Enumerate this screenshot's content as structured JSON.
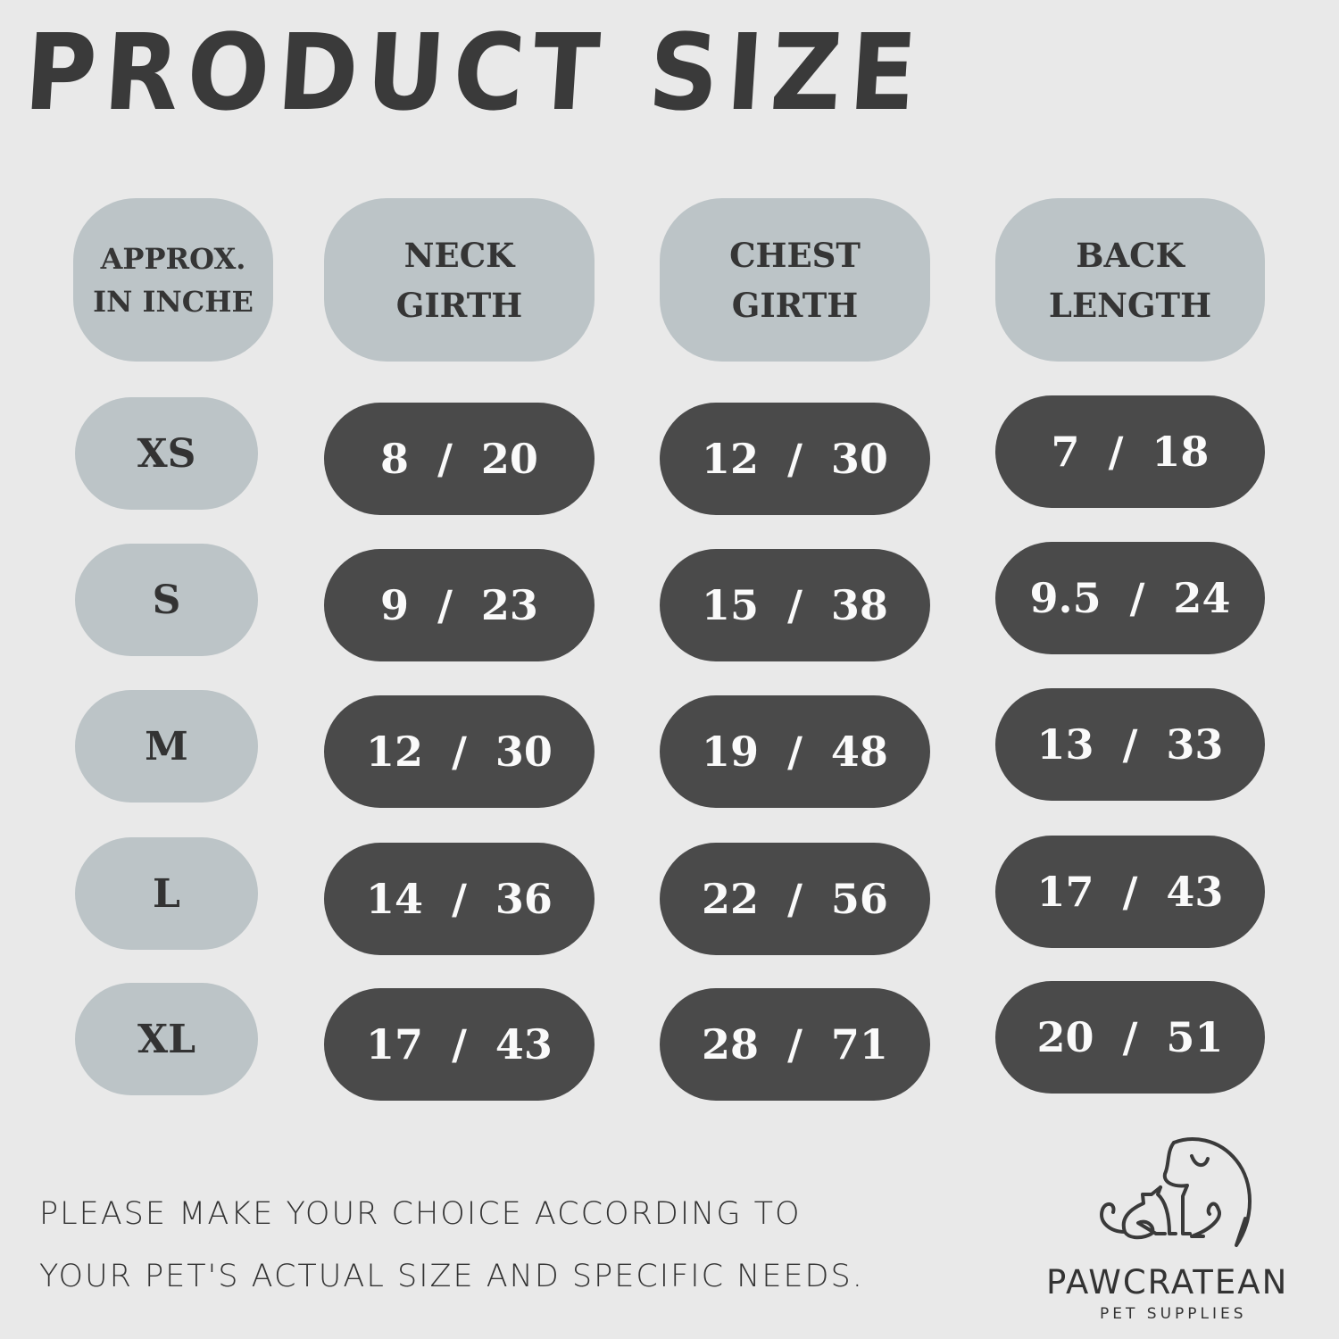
{
  "title": "PRODUCT SIZE",
  "headers": [
    "APPROX.\nIN INCHE",
    "NECK\nGIRTH",
    "CHEST\nGIRTH",
    "BACK\nLENGTH"
  ],
  "rows": [
    {
      "size": "XS",
      "neck": "8  /  20",
      "chest": "12  /  30",
      "back": "7  /  18"
    },
    {
      "size": "S",
      "neck": "9  /  23",
      "chest": "15  /  38",
      "back": "9.5  /  24"
    },
    {
      "size": "M",
      "neck": "12  /  30",
      "chest": "19  /  48",
      "back": "13  /  33"
    },
    {
      "size": "L",
      "neck": "14  /  36",
      "chest": "22  /  56",
      "back": "17  /  43"
    },
    {
      "size": "XL",
      "neck": "17  /  43",
      "chest": "28  /  71",
      "back": "20  /  51"
    }
  ],
  "note": {
    "line1": "PLEASE MAKE YOUR CHOICE ACCORDING TO",
    "line2": "YOUR PET'S ACTUAL SIZE AND SPECIFIC NEEDS."
  },
  "logo": {
    "icon": "dog-and-cat-outline-icon",
    "brand": "PAWCRATEAN",
    "tagline": "PET SUPPLIES"
  },
  "colors": {
    "background": "#e9e9e9",
    "header_pill": "#bcc4c7",
    "value_pill": "#4a4a4a",
    "text": "#333333"
  }
}
